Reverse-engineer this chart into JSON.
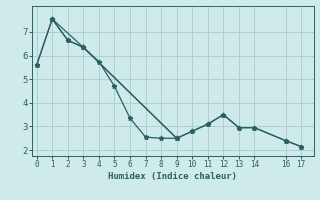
{
  "xlabel": "Humidex (Indice chaleur)",
  "background_color": "#ceeaea",
  "grid_color": "#aed0d0",
  "line_color": "#2a6060",
  "line1_x": [
    0,
    1,
    2,
    3,
    4,
    5,
    6,
    7,
    8,
    9,
    10,
    11,
    12,
    13,
    14,
    16,
    17
  ],
  "line1_y": [
    5.6,
    7.55,
    6.65,
    6.35,
    5.75,
    4.7,
    3.35,
    2.55,
    2.5,
    2.5,
    2.8,
    3.1,
    3.5,
    2.95,
    2.95,
    2.4,
    2.15
  ],
  "line2_x": [
    0,
    1,
    2,
    3,
    9,
    10,
    11,
    12,
    13,
    14,
    16,
    17
  ],
  "line2_y": [
    5.6,
    7.55,
    6.65,
    6.35,
    2.5,
    2.8,
    3.1,
    3.5,
    2.95,
    2.95,
    2.4,
    2.15
  ],
  "line3_x": [
    1,
    3,
    9
  ],
  "line3_y": [
    7.55,
    6.35,
    2.5
  ],
  "xticks": [
    0,
    1,
    2,
    3,
    4,
    5,
    6,
    7,
    8,
    9,
    10,
    11,
    12,
    13,
    14,
    16,
    17
  ],
  "yticks": [
    2,
    3,
    4,
    5,
    6,
    7
  ],
  "xlim": [
    -0.3,
    17.8
  ],
  "ylim": [
    1.75,
    8.1
  ]
}
